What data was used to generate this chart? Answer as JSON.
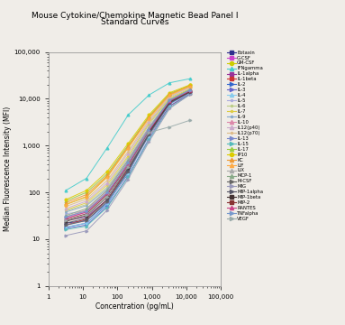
{
  "title": "Mouse Cytokine/Chemokine Magnetic Bead Panel I\nStandard Curves",
  "xlabel": "Concentration (pg/mL)",
  "ylabel": "Median Fluorescence Intensity (MFI)",
  "xmin": 1,
  "xmax": 100000,
  "ymin": 1,
  "ymax": 100000,
  "background": "#f0ede8",
  "series": [
    {
      "name": "Eotaxin",
      "color": "#2d2d8c",
      "marker": "s",
      "x": [
        3.2,
        12.8,
        51.2,
        204.8,
        819.2,
        3276.8,
        13107
      ],
      "y": [
        22,
        25,
        60,
        250,
        1800,
        8000,
        14000
      ]
    },
    {
      "name": "G-CSF",
      "color": "#cc44cc",
      "marker": "s",
      "x": [
        3.2,
        12.8,
        51.2,
        204.8,
        819.2,
        3276.8,
        13107
      ],
      "y": [
        28,
        38,
        100,
        400,
        2000,
        9000,
        15000
      ]
    },
    {
      "name": "GM-CSF",
      "color": "#cccc00",
      "marker": "o",
      "x": [
        3.2,
        12.8,
        51.2,
        204.8,
        819.2,
        3276.8,
        13107
      ],
      "y": [
        55,
        80,
        220,
        900,
        4000,
        12000,
        20000
      ]
    },
    {
      "name": "IFNgamma",
      "color": "#44cccc",
      "marker": "^",
      "x": [
        3.2,
        12.8,
        51.2,
        204.8,
        819.2,
        3276.8,
        13107
      ],
      "y": [
        110,
        200,
        900,
        4500,
        12000,
        22000,
        27000
      ]
    },
    {
      "name": "IL-1alpha",
      "color": "#993399",
      "marker": "s",
      "x": [
        3.2,
        12.8,
        51.2,
        204.8,
        819.2,
        3276.8,
        13107
      ],
      "y": [
        25,
        30,
        70,
        320,
        1800,
        8500,
        14500
      ]
    },
    {
      "name": "IL-1beta",
      "color": "#cc3333",
      "marker": "s",
      "x": [
        3.2,
        12.8,
        51.2,
        204.8,
        819.2,
        3276.8,
        13107
      ],
      "y": [
        20,
        27,
        70,
        320,
        1600,
        7000,
        13000
      ]
    },
    {
      "name": "IL-2",
      "color": "#3366cc",
      "marker": ">",
      "x": [
        3.2,
        12.8,
        51.2,
        204.8,
        819.2,
        3276.8,
        13107
      ],
      "y": [
        18,
        22,
        55,
        280,
        1700,
        8000,
        14000
      ]
    },
    {
      "name": "IL-3",
      "color": "#6666cc",
      "marker": ">",
      "x": [
        3.2,
        12.8,
        51.2,
        204.8,
        819.2,
        3276.8,
        13107
      ],
      "y": [
        17,
        20,
        50,
        220,
        1400,
        7000,
        13000
      ]
    },
    {
      "name": "IL-4",
      "color": "#88ccee",
      "marker": "^",
      "x": [
        3.2,
        12.8,
        51.2,
        204.8,
        819.2,
        3276.8,
        13107
      ],
      "y": [
        18,
        22,
        58,
        260,
        1600,
        7500,
        13500
      ]
    },
    {
      "name": "IL-5",
      "color": "#aaaadd",
      "marker": ".",
      "x": [
        3.2,
        12.8,
        51.2,
        204.8,
        819.2,
        3276.8,
        13107
      ],
      "y": [
        35,
        40,
        95,
        350,
        1900,
        8500,
        14000
      ]
    },
    {
      "name": "IL-6",
      "color": "#bbcc88",
      "marker": ".",
      "x": [
        3.2,
        12.8,
        51.2,
        204.8,
        819.2,
        3276.8,
        13107
      ],
      "y": [
        40,
        55,
        130,
        550,
        2800,
        10000,
        16000
      ]
    },
    {
      "name": "IL-7",
      "color": "#ddcc44",
      "marker": ".",
      "x": [
        3.2,
        12.8,
        51.2,
        204.8,
        819.2,
        3276.8,
        13107
      ],
      "y": [
        42,
        60,
        145,
        600,
        3000,
        10500,
        16500
      ]
    },
    {
      "name": "IL-9",
      "color": "#88aacc",
      "marker": ".",
      "x": [
        3.2,
        12.8,
        51.2,
        204.8,
        819.2,
        3276.8,
        13107
      ],
      "y": [
        38,
        52,
        120,
        500,
        2500,
        9500,
        15000
      ]
    },
    {
      "name": "IL-10",
      "color": "#dd88aa",
      "marker": "^",
      "x": [
        3.2,
        12.8,
        51.2,
        204.8,
        819.2,
        3276.8,
        13107
      ],
      "y": [
        30,
        42,
        110,
        480,
        2400,
        9000,
        15000
      ]
    },
    {
      "name": "IL12(p40)",
      "color": "#ccaacc",
      "marker": "^",
      "x": [
        3.2,
        12.8,
        51.2,
        204.8,
        819.2,
        3276.8,
        13107
      ],
      "y": [
        45,
        65,
        160,
        680,
        3200,
        11000,
        17500
      ]
    },
    {
      "name": "IL12(p70)",
      "color": "#ddbb88",
      "marker": ".",
      "x": [
        3.2,
        12.8,
        51.2,
        204.8,
        819.2,
        3276.8,
        13107
      ],
      "y": [
        50,
        72,
        180,
        750,
        3500,
        11500,
        18000
      ]
    },
    {
      "name": "IL-13",
      "color": "#7788cc",
      "marker": ">",
      "x": [
        3.2,
        12.8,
        51.2,
        204.8,
        819.2,
        3276.8,
        13107
      ],
      "y": [
        20,
        25,
        62,
        280,
        1700,
        7800,
        13800
      ]
    },
    {
      "name": "IL-15",
      "color": "#55bbbb",
      "marker": ">",
      "x": [
        3.2,
        12.8,
        51.2,
        204.8,
        819.2,
        3276.8,
        13107
      ],
      "y": [
        16,
        19,
        48,
        210,
        1300,
        6500,
        12500
      ]
    },
    {
      "name": "IL-17",
      "color": "#99cc44",
      "marker": "^",
      "x": [
        3.2,
        12.8,
        51.2,
        204.8,
        819.2,
        3276.8,
        13107
      ],
      "y": [
        65,
        100,
        250,
        1000,
        4200,
        13000,
        19000
      ]
    },
    {
      "name": "IP10",
      "color": "#ddcc00",
      "marker": "o",
      "x": [
        3.2,
        12.8,
        51.2,
        204.8,
        819.2,
        3276.8,
        13107
      ],
      "y": [
        70,
        110,
        280,
        1100,
        4500,
        13500,
        20000
      ]
    },
    {
      "name": "KC",
      "color": "#ee9933",
      "marker": "^",
      "x": [
        3.2,
        12.8,
        51.2,
        204.8,
        819.2,
        3276.8,
        13107
      ],
      "y": [
        60,
        90,
        230,
        950,
        4000,
        12500,
        19000
      ]
    },
    {
      "name": "LIF",
      "color": "#ffaa44",
      "marker": "^",
      "x": [
        3.2,
        12.8,
        51.2,
        204.8,
        819.2,
        3276.8,
        13107
      ],
      "y": [
        55,
        82,
        210,
        880,
        3800,
        12000,
        18500
      ]
    },
    {
      "name": "LIX",
      "color": "#aaaaaa",
      "marker": "^",
      "x": [
        3.2,
        12.8,
        51.2,
        204.8,
        819.2,
        3276.8,
        13107
      ],
      "y": [
        30,
        40,
        100,
        430,
        2200,
        9200,
        15500
      ]
    },
    {
      "name": "MCP-1",
      "color": "#88aa88",
      "marker": "^",
      "x": [
        3.2,
        12.8,
        51.2,
        204.8,
        819.2,
        3276.8,
        13107
      ],
      "y": [
        32,
        45,
        112,
        470,
        2300,
        9500,
        16000
      ]
    },
    {
      "name": "M-CSF",
      "color": "#666666",
      "marker": ">",
      "x": [
        3.2,
        12.8,
        51.2,
        204.8,
        819.2,
        3276.8,
        13107
      ],
      "y": [
        20,
        25,
        65,
        280,
        1700,
        8000,
        14000
      ]
    },
    {
      "name": "MIG",
      "color": "#9999bb",
      "marker": ">",
      "x": [
        3.2,
        12.8,
        51.2,
        204.8,
        819.2,
        3276.8,
        13107
      ],
      "y": [
        12,
        15,
        42,
        190,
        1200,
        6200,
        12500
      ]
    },
    {
      "name": "MIP-1alpha",
      "color": "#555566",
      "marker": ">",
      "x": [
        3.2,
        12.8,
        51.2,
        204.8,
        819.2,
        3276.8,
        13107
      ],
      "y": [
        22,
        28,
        70,
        300,
        1800,
        8200,
        14200
      ]
    },
    {
      "name": "MIP-1beta",
      "color": "#443333",
      "marker": "s",
      "x": [
        3.2,
        12.8,
        51.2,
        204.8,
        819.2,
        3276.8,
        13107
      ],
      "y": [
        24,
        32,
        80,
        340,
        1900,
        8500,
        14500
      ]
    },
    {
      "name": "MIP-2",
      "color": "#883333",
      "marker": "s",
      "x": [
        3.2,
        12.8,
        51.2,
        204.8,
        819.2,
        3276.8,
        13107
      ],
      "y": [
        26,
        35,
        90,
        370,
        2000,
        8800,
        14800
      ]
    },
    {
      "name": "RANTES",
      "color": "#cc4488",
      "marker": "^",
      "x": [
        3.2,
        12.8,
        51.2,
        204.8,
        819.2,
        3276.8,
        13107
      ],
      "y": [
        28,
        38,
        95,
        400,
        2100,
        9000,
        15000
      ]
    },
    {
      "name": "TNFalpha",
      "color": "#7799cc",
      "marker": ">",
      "x": [
        3.2,
        12.8,
        51.2,
        204.8,
        819.2,
        3276.8,
        13107
      ],
      "y": [
        30,
        40,
        100,
        430,
        2200,
        9200,
        15500
      ]
    },
    {
      "name": "VEGF",
      "color": "#99aaaa",
      "marker": ">",
      "x": [
        3.2,
        12.8,
        51.2,
        204.8,
        819.2,
        3276.8,
        13107
      ],
      "y": [
        25,
        33,
        82,
        350,
        1900,
        2500,
        3500
      ]
    }
  ]
}
